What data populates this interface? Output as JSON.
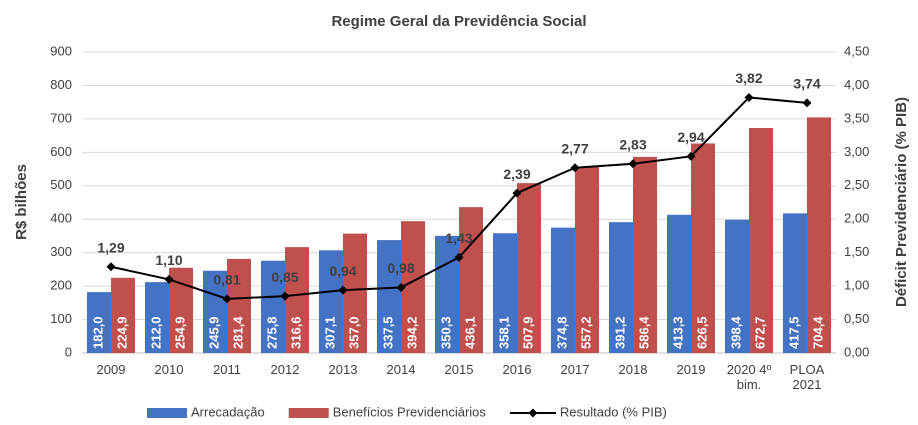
{
  "chart_data": {
    "type": "bar_line",
    "title": "Regime Geral da Previdência Social",
    "y_label": "R$ bilhões",
    "y2_label": "Déficit Previdenciário (% PIB)",
    "categories": [
      "2009",
      "2010",
      "2011",
      "2012",
      "2013",
      "2014",
      "2015",
      "2016",
      "2017",
      "2018",
      "2019",
      "2020 4º bim.",
      "PLOA 2021"
    ],
    "ylim": [
      0,
      900
    ],
    "yticks": [
      0,
      100,
      200,
      300,
      400,
      500,
      600,
      700,
      800,
      900
    ],
    "y2lim": [
      0,
      4.5
    ],
    "y2ticks": [
      {
        "value": 0,
        "label": "0,00"
      },
      {
        "value": 0.5,
        "label": "0,50"
      },
      {
        "value": 1,
        "label": "1,00"
      },
      {
        "value": 1.5,
        "label": "1,50"
      },
      {
        "value": 2,
        "label": "2,00"
      },
      {
        "value": 2.5,
        "label": "2,50"
      },
      {
        "value": 3,
        "label": "3,00"
      },
      {
        "value": 3.5,
        "label": "3,50"
      },
      {
        "value": 4,
        "label": "4,00"
      },
      {
        "value": 4.5,
        "label": "4,50"
      }
    ],
    "grid": true,
    "legend": "bottom",
    "series": [
      {
        "name": "Arrecadação",
        "type": "bar",
        "color": "#4472c4",
        "values": [
          182.0,
          212.0,
          245.9,
          275.8,
          307.1,
          337.5,
          350.3,
          358.1,
          374.8,
          391.2,
          413.3,
          398.4,
          417.5
        ],
        "value_labels": [
          "182,0",
          "212,0",
          "245,9",
          "275,8",
          "307,1",
          "337,5",
          "350,3",
          "358,1",
          "374,8",
          "391,2",
          "413,3",
          "398,4",
          "417,5"
        ]
      },
      {
        "name": "Benefícios Previdenciários",
        "type": "bar",
        "color": "#c0504d",
        "values": [
          224.9,
          254.9,
          281.4,
          316.6,
          357.0,
          394.2,
          436.1,
          507.9,
          557.2,
          586.4,
          626.5,
          672.7,
          704.4
        ],
        "value_labels": [
          "224,9",
          "254,9",
          "281,4",
          "316,6",
          "357,0",
          "394,2",
          "436,1",
          "507,9",
          "557,2",
          "586,4",
          "626,5",
          "672,7",
          "704,4"
        ]
      },
      {
        "name": "Resultado (% PIB)",
        "type": "line",
        "axis": "y2",
        "color": "#000000",
        "values": [
          1.29,
          1.1,
          0.81,
          0.85,
          0.94,
          0.98,
          1.43,
          2.39,
          2.77,
          2.83,
          2.94,
          3.82,
          3.74
        ],
        "value_labels": [
          "1,29",
          "1,10",
          "0,81",
          "0,85",
          "0,94",
          "0,98",
          "1,43",
          "2,39",
          "2,77",
          "2,83",
          "2,94",
          "3,82",
          "3,74"
        ]
      }
    ]
  }
}
